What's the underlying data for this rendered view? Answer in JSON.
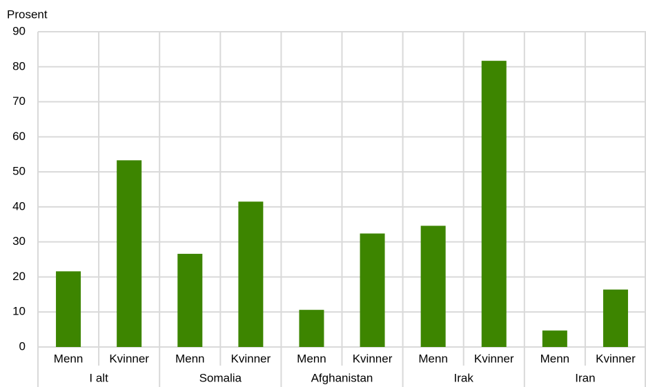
{
  "chart_data": {
    "type": "bar",
    "y_label": "Prosent",
    "categories": [
      "Menn",
      "Kvinner",
      "Menn",
      "Kvinner",
      "Menn",
      "Kvinner",
      "Menn",
      "Kvinner",
      "Menn",
      "Kvinner"
    ],
    "groups": [
      "I alt",
      "Somalia",
      "Afghanistan",
      "Irak",
      "Iran"
    ],
    "values": [
      21.6,
      53.3,
      26.6,
      41.5,
      10.6,
      32.4,
      34.6,
      81.7,
      4.7,
      16.4
    ],
    "color": "#3d8500",
    "ylim": [
      0,
      90
    ],
    "yticks": [
      0,
      10,
      20,
      30,
      40,
      50,
      60,
      70,
      80,
      90
    ],
    "grid": true
  }
}
